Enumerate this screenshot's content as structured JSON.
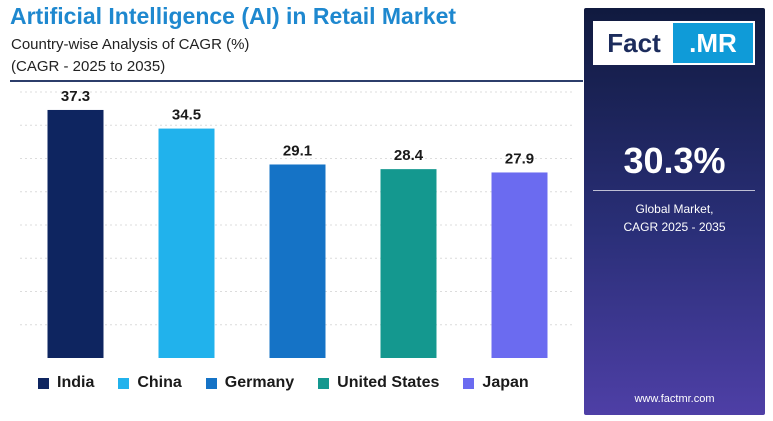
{
  "chart_data": {
    "type": "bar",
    "title": "Artificial Intelligence (AI) in Retail Market",
    "subtitle": "Country-wise Analysis of CAGR (%)",
    "period": "(CAGR - 2025 to 2035)",
    "categories": [
      "India",
      "China",
      "Germany",
      "United States",
      "Japan"
    ],
    "values": [
      37.3,
      34.5,
      29.1,
      28.4,
      27.9
    ],
    "value_labels": [
      "37.3",
      "34.5",
      "29.1",
      "28.4",
      "27.9"
    ],
    "colors": [
      "#0e2560",
      "#21b2ec",
      "#1573c6",
      "#14988f",
      "#6b6bf0"
    ],
    "ylim": [
      0,
      40
    ],
    "xlabel": "",
    "ylabel": "",
    "grid": true,
    "legend_position": "bottom"
  },
  "panel": {
    "logo_left": "Fact",
    "logo_right": ".MR",
    "global_cagr": "30.3%",
    "global_label_line1": "Global Market,",
    "global_label_line2": "CAGR 2025 - 2035",
    "website": "www.factmr.com"
  }
}
